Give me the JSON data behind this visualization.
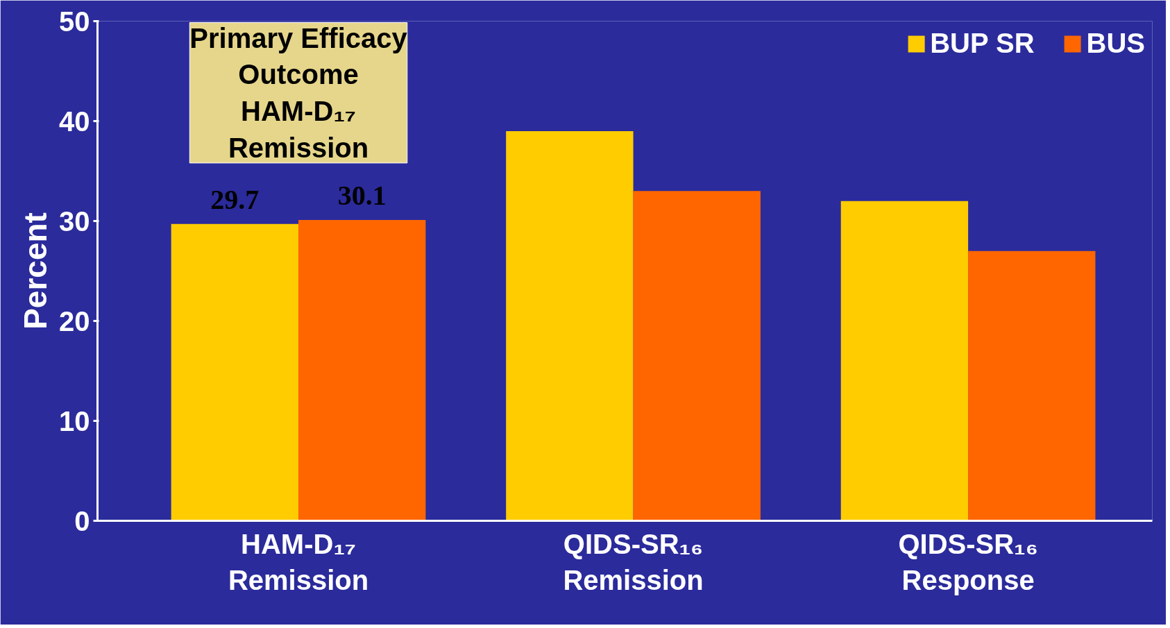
{
  "chart_data": {
    "type": "bar",
    "ylabel": "Percent",
    "categories": [
      "HAM-D₁₇\nRemission",
      "QIDS-SR₁₆\nRemission",
      "QIDS-SR₁₆\nResponse"
    ],
    "series": [
      {
        "name": "BUP SR",
        "color": "#ffcc00",
        "values": [
          29.7,
          39,
          32
        ],
        "value_labels": [
          "29.7",
          null,
          null
        ]
      },
      {
        "name": "BUS",
        "color": "#ff6600",
        "values": [
          30.1,
          33,
          27
        ],
        "value_labels": [
          "30.1",
          null,
          null
        ]
      }
    ],
    "annotations": [
      "Primary Efficacy\nOutcome\nHAM-D₁₇\nRemission"
    ],
    "ylim": [
      0,
      50
    ],
    "yticks": [
      0,
      10,
      20,
      30,
      40,
      50
    ],
    "grid": false,
    "legend": "top right"
  }
}
